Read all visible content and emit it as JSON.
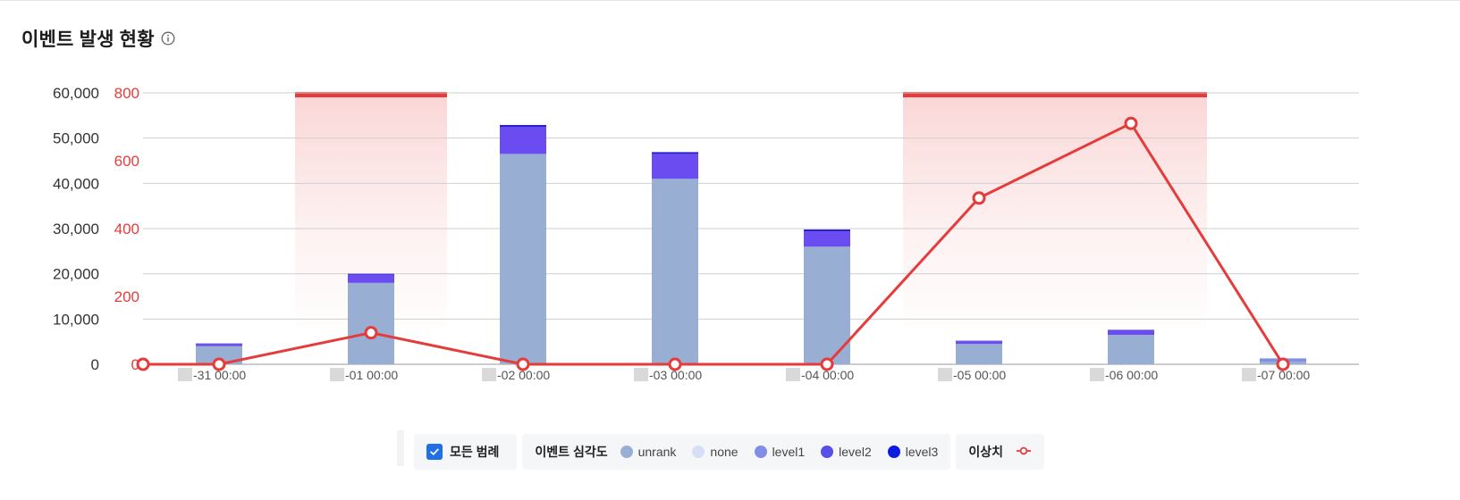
{
  "header": {
    "title": "이벤트 발생 현황",
    "info_icon": "info-icon"
  },
  "legend": {
    "all_label": "모든 범례",
    "severity_title": "이벤트 심각도",
    "items": [
      {
        "label": "unrank",
        "color": "#98aed3"
      },
      {
        "label": "none",
        "color": "#d6dff5"
      },
      {
        "label": "level1",
        "color": "#7f8ee6"
      },
      {
        "label": "level2",
        "color": "#5750e8"
      },
      {
        "label": "level3",
        "color": "#0a1be0"
      }
    ],
    "anomaly_label": "이상치",
    "anomaly_color": "#e53b3b"
  },
  "chart_data": {
    "type": "bar",
    "stacked": true,
    "categories": [
      "-31 00:00",
      "-01 00:00",
      "-02 00:00",
      "-03 00:00",
      "-04 00:00",
      "-05 00:00",
      "-06 00:00",
      "-07 00:00"
    ],
    "series": [
      {
        "name": "unrank",
        "color": "#98aed3",
        "values": [
          4000,
          18000,
          46500,
          41000,
          26000,
          4500,
          6500,
          600
        ]
      },
      {
        "name": "none",
        "color": "#d6dff5",
        "values": [
          0,
          0,
          0,
          0,
          0,
          0,
          0,
          0
        ]
      },
      {
        "name": "level1",
        "color": "#7f8ee6",
        "values": [
          0,
          0,
          0,
          0,
          0,
          0,
          0,
          700
        ]
      },
      {
        "name": "level2",
        "color": "#6a4cf0",
        "values": [
          500,
          1800,
          6000,
          5500,
          3400,
          600,
          1000,
          0
        ]
      },
      {
        "name": "level3",
        "color": "#2a1fd0",
        "values": [
          100,
          200,
          400,
          400,
          400,
          100,
          100,
          0
        ]
      }
    ],
    "line": {
      "name": "이상치",
      "axis": "right",
      "color": "#e53b3b",
      "x": [
        -0.5,
        0,
        1,
        2,
        3,
        4,
        5,
        6,
        7
      ],
      "values": [
        0,
        0,
        93,
        0,
        0,
        0,
        490,
        710,
        0
      ]
    },
    "anomaly_ranges": [
      [
        1,
        1
      ],
      [
        5,
        6
      ]
    ],
    "y_left": {
      "ylim": [
        0,
        60000
      ],
      "ticks": [
        "0",
        "10,000",
        "20,000",
        "30,000",
        "40,000",
        "50,000",
        "60,000"
      ]
    },
    "y_right": {
      "ylim": [
        0,
        800
      ],
      "ticks": [
        "0",
        "200",
        "400",
        "600",
        "800"
      ]
    },
    "grid": true
  }
}
